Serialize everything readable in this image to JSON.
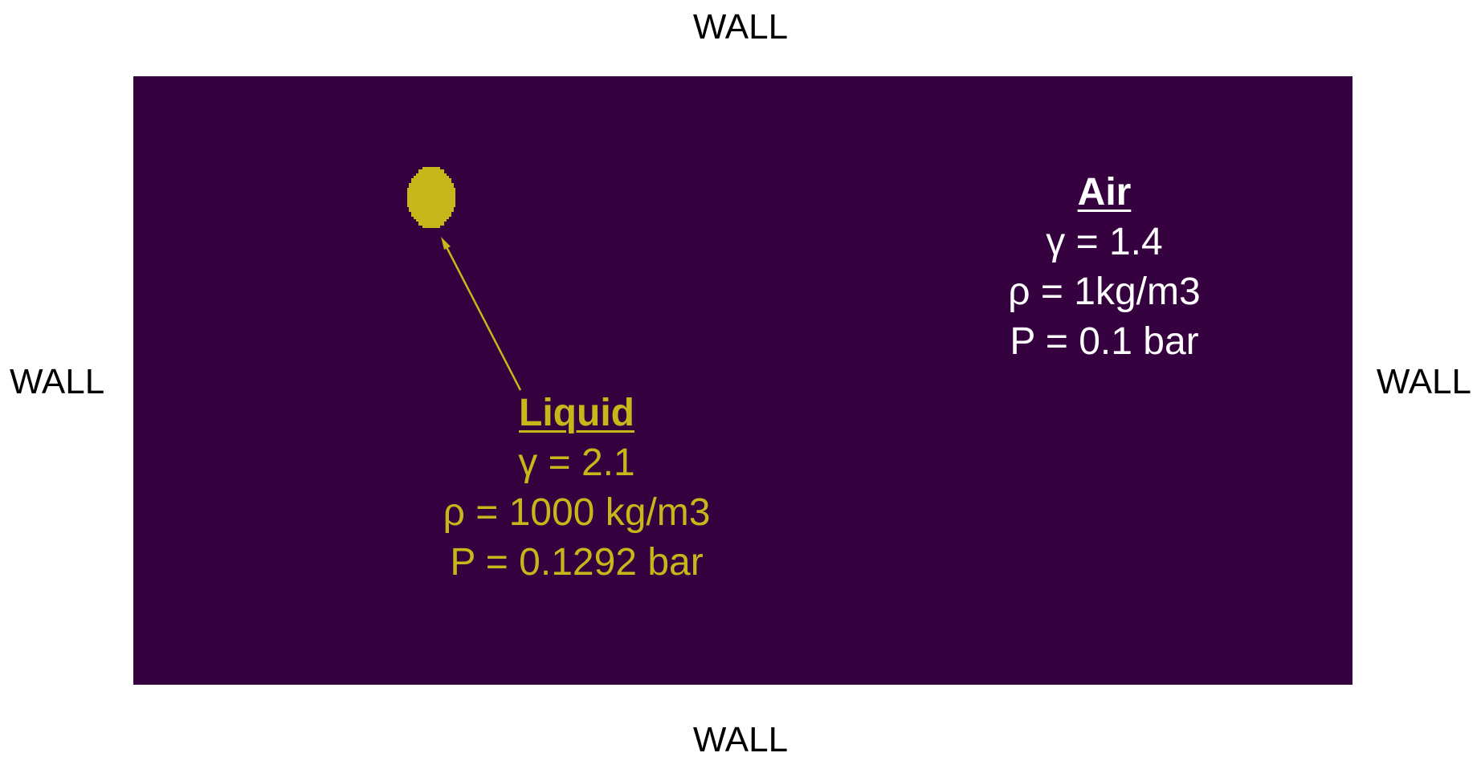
{
  "walls": {
    "top": "WALL",
    "bottom": "WALL",
    "left": "WALL",
    "right": "WALL"
  },
  "colors": {
    "domain_background": "#36013f",
    "liquid": "#c8b71a",
    "air": "#ffffff",
    "wall_text": "#000000"
  },
  "air": {
    "heading": "Air",
    "gamma": "γ = 1.4",
    "density": "ρ = 1kg/m3",
    "pressure": "P = 0.1 bar"
  },
  "liquid": {
    "heading": "Liquid",
    "gamma": "γ = 2.1",
    "density": "ρ = 1000 kg/m3",
    "pressure": "P = 0.1292 bar"
  }
}
